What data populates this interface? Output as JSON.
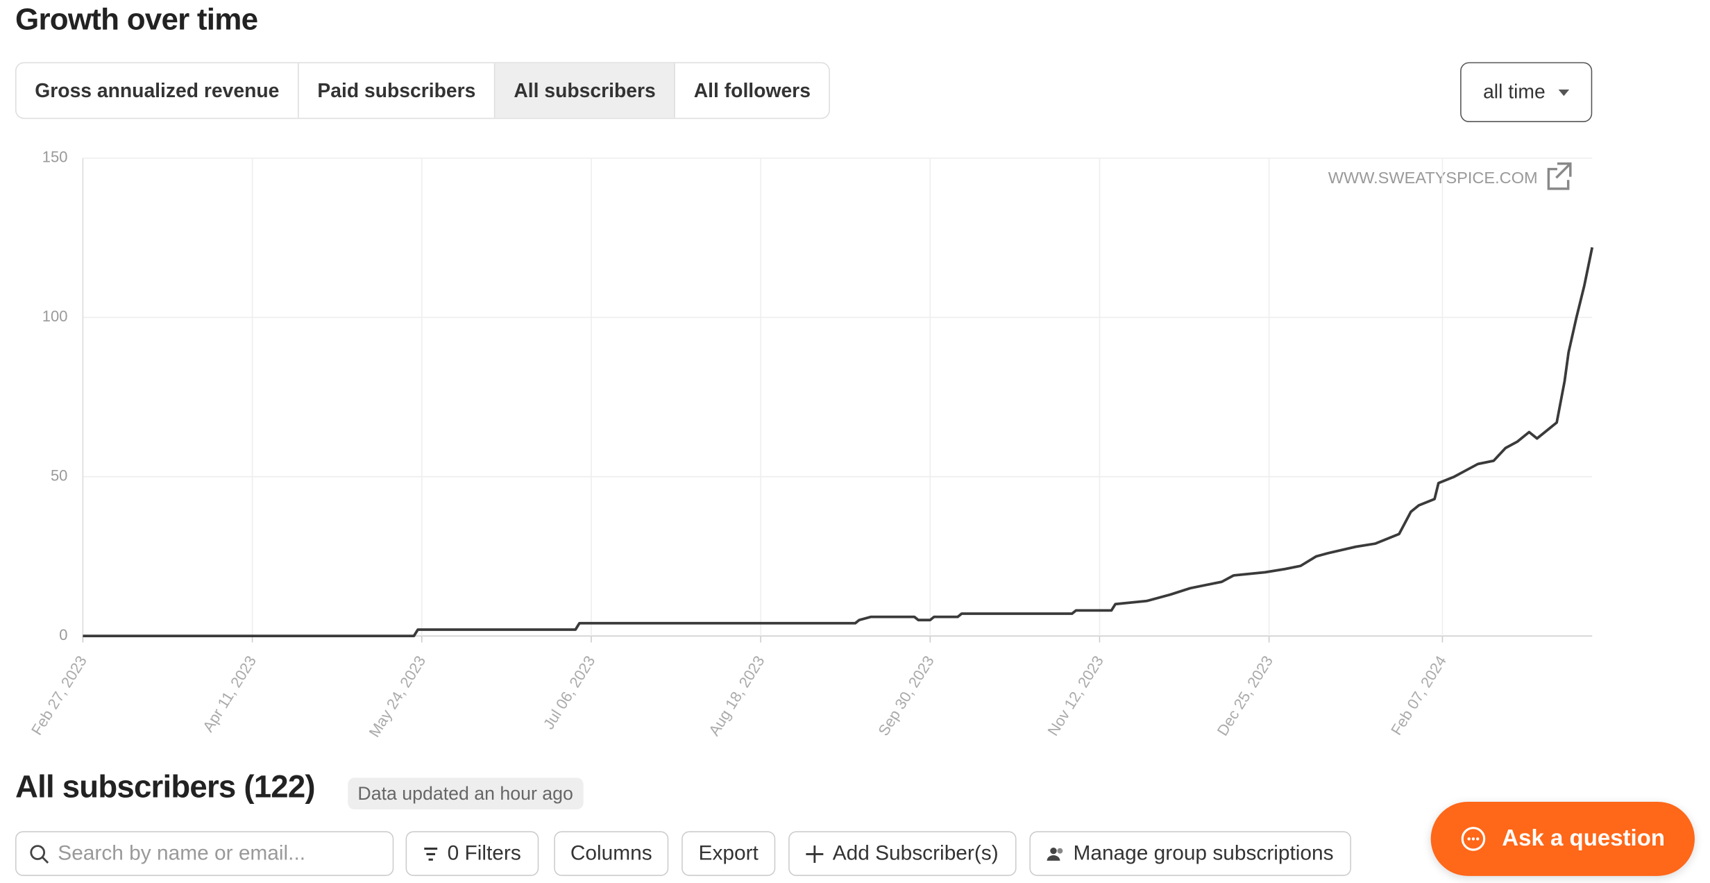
{
  "header": {
    "title": "Growth over time"
  },
  "tabs": [
    {
      "label": "Gross annualized revenue",
      "active": false
    },
    {
      "label": "Paid subscribers",
      "active": false
    },
    {
      "label": "All subscribers",
      "active": true
    },
    {
      "label": "All followers",
      "active": false
    }
  ],
  "range_selector": "all time",
  "chart_data": {
    "type": "line",
    "watermark": "WWW.SWEATYSPICE.COM",
    "color": "#3a3a3a",
    "grid": true,
    "x": [
      "2023-02-27",
      "2023-05-22",
      "2023-05-23",
      "2023-07-02",
      "2023-07-03",
      "2023-09-11",
      "2023-09-12",
      "2023-09-15",
      "2023-09-26",
      "2023-09-27",
      "2023-09-30",
      "2023-10-01",
      "2023-10-07",
      "2023-10-08",
      "2023-11-05",
      "2023-11-06",
      "2023-11-15",
      "2023-11-16",
      "2023-11-24",
      "2023-11-30",
      "2023-12-05",
      "2023-12-09",
      "2023-12-13",
      "2023-12-16",
      "2023-12-24",
      "2023-12-29",
      "2024-01-02",
      "2024-01-06",
      "2024-01-09",
      "2024-01-16",
      "2024-01-21",
      "2024-01-27",
      "2024-01-30",
      "2024-02-01",
      "2024-02-05",
      "2024-02-06",
      "2024-02-10",
      "2024-02-13",
      "2024-02-16",
      "2024-02-20",
      "2024-02-23",
      "2024-02-26",
      "2024-02-29",
      "2024-03-02",
      "2024-03-05",
      "2024-03-07",
      "2024-03-09",
      "2024-03-10",
      "2024-03-12",
      "2024-03-14",
      "2024-03-16"
    ],
    "values": [
      0,
      0,
      2,
      2,
      4,
      4,
      5,
      6,
      6,
      5,
      5,
      6,
      6,
      7,
      7,
      8,
      8,
      10,
      11,
      13,
      15,
      16,
      17,
      19,
      20,
      21,
      22,
      25,
      26,
      28,
      29,
      32,
      39,
      41,
      43,
      48,
      50,
      52,
      54,
      55,
      59,
      61,
      64,
      62,
      65,
      67,
      80,
      89,
      100,
      110,
      122
    ],
    "xlim": [
      "2023-02-27",
      "2024-03-16"
    ],
    "xticks": [
      {
        "value": "2023-02-27",
        "label": "Feb 27, 2023"
      },
      {
        "value": "2023-04-11",
        "label": "Apr 11, 2023"
      },
      {
        "value": "2023-05-24",
        "label": "May 24, 2023"
      },
      {
        "value": "2023-07-06",
        "label": "Jul 06, 2023"
      },
      {
        "value": "2023-08-18",
        "label": "Aug 18, 2023"
      },
      {
        "value": "2023-09-30",
        "label": "Sep 30, 2023"
      },
      {
        "value": "2023-11-12",
        "label": "Nov 12, 2023"
      },
      {
        "value": "2023-12-25",
        "label": "Dec 25, 2023"
      },
      {
        "value": "2024-02-07",
        "label": "Feb 07, 2024"
      }
    ],
    "ylim": [
      0,
      150
    ],
    "yticks": [
      0,
      50,
      100,
      150
    ]
  },
  "subscribers": {
    "title": "All subscribers (122)",
    "updated": "Data updated an hour ago"
  },
  "toolbar": {
    "search_placeholder": "Search by name or email...",
    "filters": "0 Filters",
    "columns": "Columns",
    "export": "Export",
    "add": "Add Subscriber(s)",
    "manage": "Manage group subscriptions"
  },
  "help_button": "Ask a question"
}
